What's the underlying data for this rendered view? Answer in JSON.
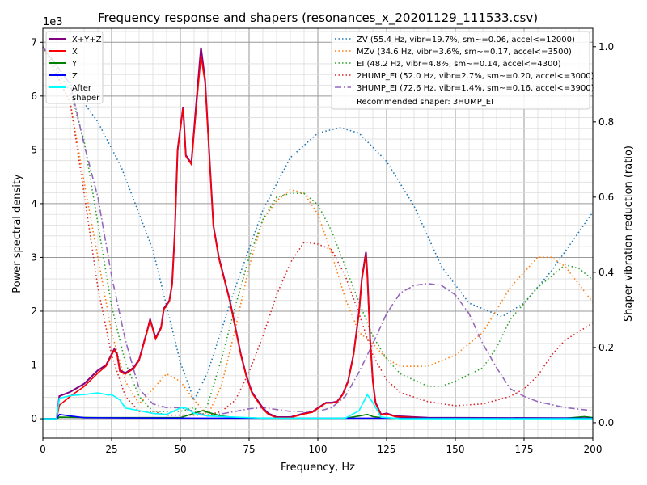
{
  "chart_data": {
    "type": "line",
    "title": "Frequency response and shapers (resonances_x_20201129_111533.csv)",
    "xlabel": "Frequency, Hz",
    "ylabel": "Power spectral density",
    "ylabel_right": "Shaper vibration reduction (ratio)",
    "y_offset_label": "1e3",
    "xlim": [
      0,
      200
    ],
    "ylim": [
      -360,
      7260
    ],
    "ylim_right": [
      -0.041,
      1.049
    ],
    "xticks": [
      "0",
      "25",
      "50",
      "75",
      "100",
      "125",
      "150",
      "175",
      "200"
    ],
    "yticks": [
      "0",
      "1",
      "2",
      "3",
      "4",
      "5",
      "6",
      "7"
    ],
    "yticks_right": [
      "0.0",
      "0.2",
      "0.4",
      "0.6",
      "0.8",
      "1.0"
    ],
    "grid": true,
    "legend_left": "top-left",
    "legend_right": "top-right",
    "psd_series": [
      {
        "name": "X+Y+Z",
        "color": "#800080",
        "x": [
          0,
          5,
          6,
          10,
          15,
          20,
          23,
          25,
          26,
          27,
          28,
          30,
          33,
          35,
          38,
          39,
          41,
          43,
          44,
          46,
          47,
          48,
          49,
          51,
          52,
          54,
          56,
          57.5,
          59,
          61,
          62,
          64,
          66,
          68,
          70,
          72,
          74,
          76,
          78,
          80,
          82,
          85,
          90,
          95,
          98,
          100,
          103,
          105,
          107,
          109,
          111,
          113,
          115,
          116,
          117.5,
          118,
          119,
          120,
          121,
          123,
          125,
          128,
          132,
          140,
          200
        ],
        "y": [
          0,
          0,
          420,
          500,
          650,
          900,
          1000,
          1200,
          1300,
          1200,
          900,
          850,
          950,
          1100,
          1650,
          1850,
          1500,
          1700,
          2050,
          2200,
          2500,
          3500,
          5000,
          5800,
          4900,
          4750,
          6000,
          6900,
          6300,
          4500,
          3600,
          3000,
          2600,
          2200,
          1700,
          1200,
          800,
          500,
          350,
          200,
          100,
          30,
          30,
          100,
          130,
          200,
          300,
          300,
          320,
          450,
          700,
          1200,
          2000,
          2600,
          3100,
          2700,
          1500,
          700,
          300,
          80,
          100,
          50,
          40,
          20,
          10
        ]
      },
      {
        "name": "X",
        "color": "#ff0000",
        "x": [
          0,
          5,
          6,
          10,
          15,
          20,
          23,
          25,
          26,
          27,
          28,
          30,
          33,
          35,
          38,
          39,
          41,
          43,
          44,
          46,
          47,
          48,
          49,
          51,
          52,
          54,
          56,
          57.5,
          59,
          61,
          62,
          64,
          66,
          68,
          70,
          72,
          74,
          76,
          78,
          80,
          82,
          85,
          90,
          95,
          98,
          100,
          103,
          105,
          107,
          109,
          111,
          113,
          115,
          116,
          117.5,
          118,
          119,
          120,
          121,
          123,
          125,
          128,
          132,
          140,
          200
        ],
        "y": [
          0,
          0,
          250,
          420,
          600,
          850,
          980,
          1180,
          1280,
          1180,
          880,
          830,
          930,
          1080,
          1630,
          1830,
          1480,
          1680,
          2030,
          2180,
          2480,
          3480,
          4980,
          5780,
          4880,
          4730,
          5900,
          6750,
          6250,
          4480,
          3580,
          2980,
          2580,
          2180,
          1680,
          1180,
          780,
          480,
          330,
          180,
          80,
          20,
          20,
          90,
          120,
          190,
          290,
          290,
          310,
          440,
          680,
          1180,
          1980,
          2580,
          3050,
          2650,
          1480,
          680,
          280,
          70,
          90,
          40,
          30,
          10,
          5
        ]
      },
      {
        "name": "Y",
        "color": "#008000",
        "x": [
          0,
          5,
          6,
          20,
          50,
          55,
          58,
          60,
          65,
          70,
          80,
          110,
          115,
          118,
          120,
          125,
          190,
          197,
          200
        ],
        "y": [
          0,
          0,
          30,
          20,
          20,
          100,
          150,
          120,
          50,
          20,
          10,
          10,
          50,
          80,
          40,
          10,
          10,
          40,
          20
        ]
      },
      {
        "name": "Z",
        "color": "#0000ff",
        "x": [
          0,
          5,
          6,
          10,
          15,
          30,
          60,
          100,
          200
        ],
        "y": [
          0,
          0,
          80,
          50,
          20,
          15,
          10,
          10,
          10
        ]
      },
      {
        "name": "After\nshaper",
        "color": "#00ffff",
        "x": [
          0,
          5,
          6,
          10,
          15,
          20,
          24,
          25,
          28,
          30,
          35,
          40,
          45,
          50,
          52,
          55,
          60,
          70,
          80,
          110,
          115,
          118,
          120,
          123,
          130,
          200
        ],
        "y": [
          0,
          0,
          380,
          430,
          450,
          480,
          440,
          450,
          350,
          200,
          150,
          100,
          80,
          200,
          200,
          100,
          50,
          30,
          10,
          10,
          150,
          450,
          300,
          30,
          0,
          0
        ]
      }
    ],
    "shapers": [
      {
        "name": "ZV (55.4 Hz, vibr=19.7%, sm~=0.06, accel<=12000)",
        "color": "#1f77b4",
        "dash": "1.5,3",
        "x": [
          0,
          10,
          20,
          28.5,
          40,
          50,
          55,
          60,
          70,
          80,
          90,
          100,
          108,
          115,
          125,
          135,
          145,
          155,
          167,
          175,
          185,
          200
        ],
        "y": [
          1.0,
          0.9,
          0.8,
          0.68,
          0.46,
          0.16,
          0.06,
          0.135,
          0.36,
          0.565,
          0.705,
          0.77,
          0.785,
          0.77,
          0.695,
          0.576,
          0.415,
          0.318,
          0.282,
          0.318,
          0.404,
          0.56
        ]
      },
      {
        "name": "MZV (34.6 Hz, vibr=3.6%, sm~=0.17, accel<=3500)",
        "color": "#ff7f0e",
        "dash": "1.5,3",
        "x": [
          0,
          10,
          15,
          20,
          25,
          30,
          35,
          40,
          45,
          50,
          55,
          60,
          65,
          70,
          75,
          80,
          85,
          90,
          95,
          100,
          105,
          110,
          115,
          120,
          125,
          130,
          140,
          150,
          160,
          170,
          180,
          185,
          190,
          200
        ],
        "y": [
          1.0,
          0.85,
          0.64,
          0.44,
          0.24,
          0.11,
          0.05,
          0.09,
          0.13,
          0.11,
          0.06,
          0.02,
          0.1,
          0.25,
          0.415,
          0.54,
          0.59,
          0.62,
          0.61,
          0.555,
          0.45,
          0.33,
          0.24,
          0.21,
          0.17,
          0.15,
          0.15,
          0.18,
          0.24,
          0.36,
          0.44,
          0.44,
          0.415,
          0.32
        ]
      },
      {
        "name": "EI (48.2 Hz, vibr=4.8%, sm~=0.14, accel<=4300)",
        "color": "#2ca02c",
        "dash": "1.5,3",
        "x": [
          0,
          10,
          15,
          20,
          25,
          30,
          35,
          40,
          45,
          50,
          55,
          58,
          60,
          65,
          70,
          75,
          80,
          85,
          90,
          95,
          100,
          105,
          110,
          115,
          120,
          125,
          130,
          140,
          145,
          150,
          160,
          165,
          170,
          180,
          190,
          195,
          200
        ],
        "y": [
          1.0,
          0.88,
          0.75,
          0.53,
          0.31,
          0.16,
          0.07,
          0.03,
          0.03,
          0.03,
          0.04,
          0.02,
          0.05,
          0.17,
          0.31,
          0.44,
          0.54,
          0.6,
          0.61,
          0.61,
          0.58,
          0.51,
          0.415,
          0.32,
          0.23,
          0.17,
          0.13,
          0.097,
          0.097,
          0.11,
          0.146,
          0.2,
          0.275,
          0.36,
          0.42,
          0.41,
          0.38
        ]
      },
      {
        "name": "2HUMP_EI (52.0 Hz, vibr=2.7%, sm~=0.20, accel<=3000)",
        "color": "#d62728",
        "dash": "1.5,3",
        "x": [
          0,
          10,
          15,
          20,
          25,
          30,
          35,
          40,
          45,
          50,
          60,
          65,
          70,
          75,
          80,
          85,
          90,
          95,
          100,
          105,
          110,
          115,
          120,
          125,
          130,
          140,
          150,
          160,
          170,
          175,
          180,
          185,
          190,
          200
        ],
        "y": [
          1.0,
          0.85,
          0.61,
          0.36,
          0.18,
          0.07,
          0.03,
          0.03,
          0.02,
          0.02,
          0.02,
          0.03,
          0.06,
          0.135,
          0.23,
          0.34,
          0.425,
          0.48,
          0.475,
          0.46,
          0.39,
          0.29,
          0.18,
          0.114,
          0.08,
          0.056,
          0.045,
          0.05,
          0.07,
          0.09,
          0.125,
          0.18,
          0.22,
          0.265
        ]
      },
      {
        "name": "3HUMP_EI (72.6 Hz, vibr=1.4%, sm~=0.16, accel<=3900)",
        "color": "#9467bd",
        "dash": "8,3,1.5,3",
        "x": [
          0,
          10,
          15,
          20,
          25,
          30,
          35,
          40,
          45,
          50,
          55,
          60,
          70,
          75,
          80,
          90,
          100,
          105,
          110,
          115,
          120,
          125,
          130,
          135,
          140,
          145,
          150,
          155,
          160,
          165,
          170,
          175,
          180,
          190,
          200
        ],
        "y": [
          1.0,
          0.9,
          0.74,
          0.6,
          0.39,
          0.22,
          0.09,
          0.05,
          0.04,
          0.04,
          0.03,
          0.017,
          0.03,
          0.037,
          0.04,
          0.03,
          0.03,
          0.04,
          0.07,
          0.135,
          0.21,
          0.29,
          0.345,
          0.365,
          0.37,
          0.365,
          0.34,
          0.29,
          0.21,
          0.146,
          0.09,
          0.07,
          0.056,
          0.04,
          0.032
        ]
      }
    ],
    "recommended": "Recommended shaper: 3HUMP_EI"
  }
}
